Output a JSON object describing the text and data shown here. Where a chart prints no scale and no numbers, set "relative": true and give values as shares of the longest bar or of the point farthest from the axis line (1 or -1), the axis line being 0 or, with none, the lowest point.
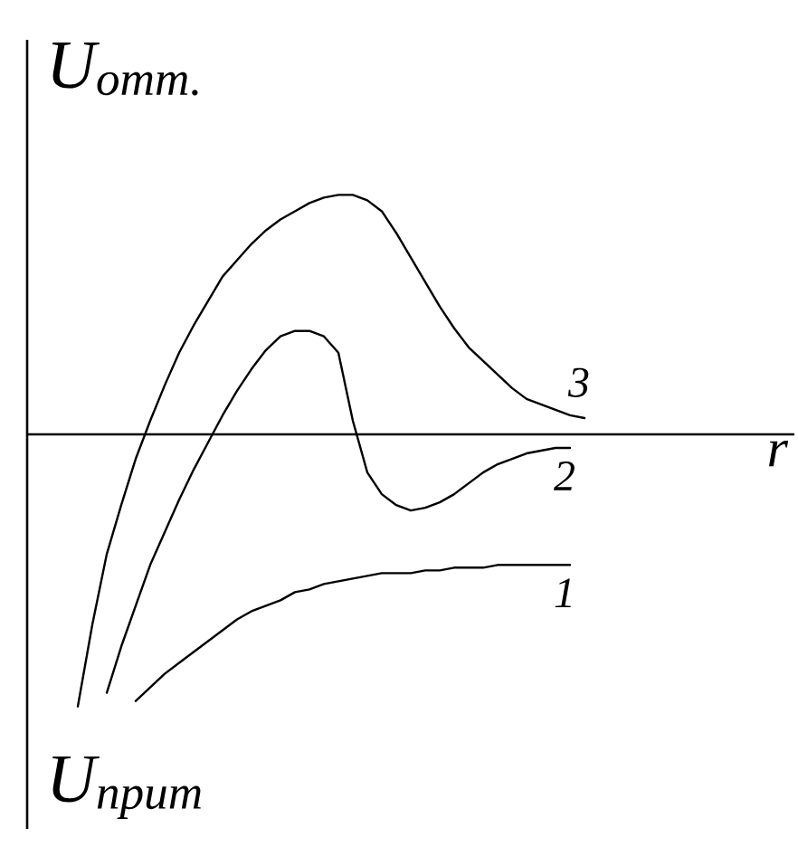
{
  "chart_data": {
    "type": "line",
    "relative": true,
    "ylabel": "U$_{отт.}$",
    "xlabel": "r",
    "annotations": [
      "U$_{прит}$"
    ],
    "line_style": "solid",
    "marker": "none",
    "categories": [
      null,
      null,
      null,
      null,
      null,
      null,
      null,
      null,
      null,
      null,
      null,
      null,
      null,
      null,
      null,
      null,
      null,
      null,
      null,
      null,
      null,
      null,
      null,
      null,
      null,
      null,
      null,
      null,
      null,
      null,
      null,
      null,
      null,
      null,
      null,
      null,
      null,
      null,
      null,
      null,
      null,
      null,
      null,
      null,
      null,
      null,
      null,
      null,
      null,
      null,
      null,
      null,
      null
    ],
    "series": [
      {
        "name": "1",
        "color": "#000000",
        "values": [
          null,
          null,
          null,
          null,
          null,
          null,
          null,
          -0.98,
          -0.93,
          -0.88,
          -0.84,
          -0.8,
          -0.76,
          -0.72,
          -0.68,
          -0.65,
          -0.63,
          -0.61,
          -0.58,
          -0.57,
          -0.55,
          -0.54,
          -0.53,
          -0.52,
          -0.51,
          -0.51,
          -0.51,
          -0.5,
          -0.5,
          -0.49,
          -0.49,
          -0.49,
          -0.48,
          -0.48,
          -0.48,
          -0.48,
          -0.48,
          -0.48,
          null,
          null,
          null,
          null,
          null,
          null,
          null,
          null,
          null,
          null,
          null,
          null,
          null,
          null,
          null
        ]
      },
      {
        "name": "2",
        "color": "#000000",
        "values": [
          null,
          null,
          null,
          null,
          null,
          -0.95,
          -0.78,
          -0.63,
          -0.48,
          -0.36,
          -0.24,
          -0.13,
          -0.03,
          0.07,
          0.16,
          0.24,
          0.31,
          0.36,
          0.38,
          0.38,
          0.36,
          0.3,
          0.05,
          -0.14,
          -0.22,
          -0.26,
          -0.28,
          -0.27,
          -0.25,
          -0.22,
          -0.18,
          -0.14,
          -0.11,
          -0.09,
          -0.07,
          -0.06,
          -0.05,
          -0.05,
          null,
          null,
          null,
          null,
          null,
          null,
          null,
          null,
          null,
          null,
          null,
          null,
          null,
          null,
          null
        ]
      },
      {
        "name": "3",
        "color": "#000000",
        "values": [
          null,
          null,
          null,
          -1.0,
          -0.7,
          -0.44,
          -0.26,
          -0.09,
          0.05,
          0.18,
          0.3,
          0.4,
          0.49,
          0.58,
          0.64,
          0.7,
          0.75,
          0.79,
          0.82,
          0.85,
          0.87,
          0.88,
          0.88,
          0.86,
          0.82,
          0.74,
          0.65,
          0.56,
          0.47,
          0.39,
          0.32,
          0.27,
          0.22,
          0.17,
          0.13,
          0.11,
          0.09,
          0.07,
          0.06,
          null,
          null,
          null,
          null,
          null,
          null,
          null,
          null,
          null,
          null,
          null,
          null,
          null,
          null
        ]
      }
    ]
  }
}
